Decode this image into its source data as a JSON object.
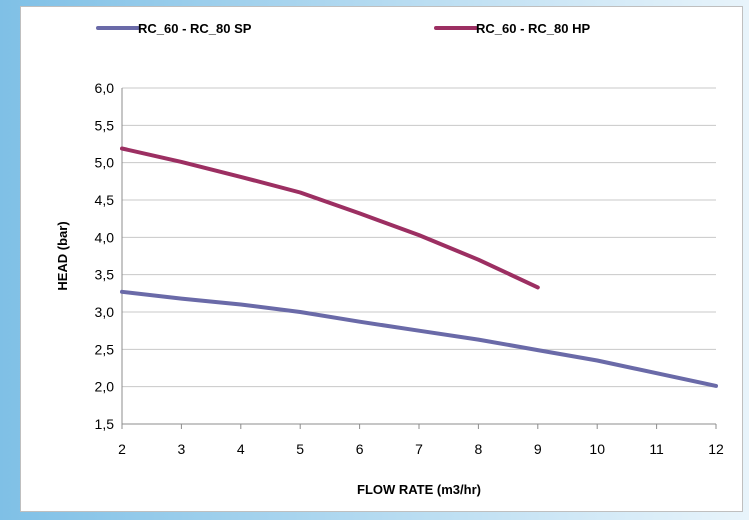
{
  "chart_data": {
    "type": "line",
    "title": "",
    "xlabel": "FLOW RATE (m3/hr)",
    "ylabel": "HEAD (bar)",
    "xlim": [
      2,
      12
    ],
    "ylim": [
      1.5,
      6.0
    ],
    "x_ticks": [
      "2",
      "3",
      "4",
      "5",
      "6",
      "7",
      "8",
      "9",
      "10",
      "11",
      "12"
    ],
    "y_ticks": [
      "1,5",
      "2,0",
      "2,5",
      "3,0",
      "3,5",
      "4,0",
      "4,5",
      "5,0",
      "5,5",
      "6,0"
    ],
    "grid": "horizontal",
    "legend_position": "top",
    "series": [
      {
        "name": "RC_60 - RC_80 SP",
        "color": "#6a6aa8",
        "points": [
          [
            2,
            3.27
          ],
          [
            3,
            3.18
          ],
          [
            4,
            3.1
          ],
          [
            5,
            3.0
          ],
          [
            6,
            2.87
          ],
          [
            7,
            2.75
          ],
          [
            8,
            2.63
          ],
          [
            9,
            2.49
          ],
          [
            10,
            2.35
          ],
          [
            11,
            2.18
          ],
          [
            12,
            2.01
          ]
        ]
      },
      {
        "name": "RC_60 - RC_80 HP",
        "color": "#9c2f62",
        "points": [
          [
            2,
            5.19
          ],
          [
            3,
            5.01
          ],
          [
            4,
            4.81
          ],
          [
            5,
            4.6
          ],
          [
            6,
            4.32
          ],
          [
            7,
            4.03
          ],
          [
            8,
            3.7
          ],
          [
            9,
            3.33
          ]
        ]
      }
    ]
  }
}
